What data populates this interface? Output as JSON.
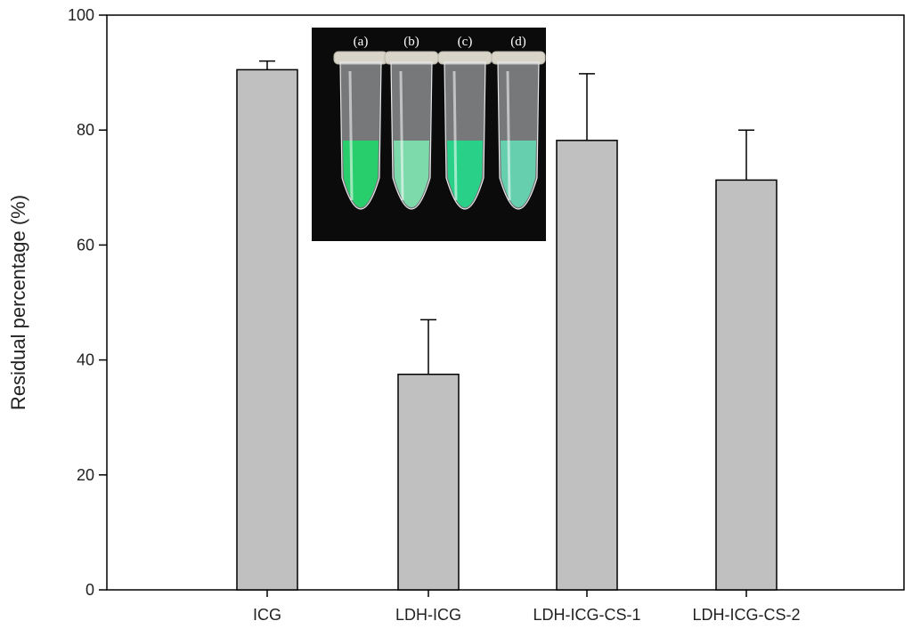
{
  "chart_data": {
    "type": "bar",
    "title": "",
    "xlabel": "",
    "ylabel": "Residual percentage (%)",
    "ylim": [
      0,
      100
    ],
    "yticks": [
      0,
      20,
      40,
      60,
      80,
      100
    ],
    "grid": false,
    "categories": [
      "ICG",
      "LDH-ICG",
      "LDH-ICG-CS-1",
      "LDH-ICG-CS-2"
    ],
    "values": [
      90.5,
      37.5,
      78.2,
      71.3
    ],
    "error_upper": [
      1.5,
      9.5,
      11.6,
      8.7
    ],
    "bar_color": "#c0c0c0",
    "edge_color": "#000000"
  },
  "inset": {
    "labels": [
      "(a)",
      "(b)",
      "(c)",
      "(d)"
    ],
    "liquid_colors": [
      "#22d66a",
      "#7ee3b0",
      "#23d88a",
      "#64d7b3"
    ],
    "background": "#0b0b0b"
  }
}
